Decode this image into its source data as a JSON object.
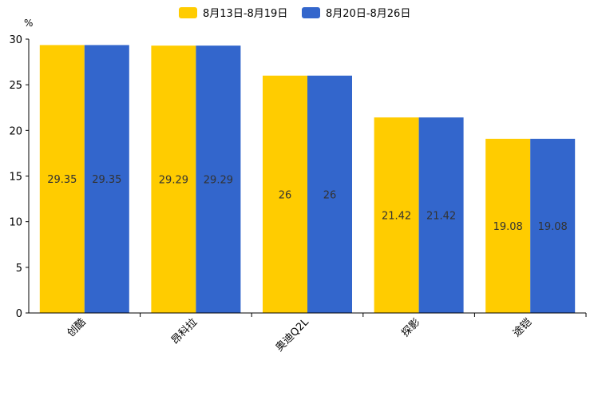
{
  "chart_data": {
    "type": "bar",
    "title": "",
    "xlabel": "",
    "ylabel": "%",
    "ylim": [
      0,
      30
    ],
    "yticks": [
      0,
      5,
      10,
      15,
      20,
      25,
      30
    ],
    "grid": false,
    "legend_position": "top-center",
    "categories": [
      "创酷",
      "昂科拉",
      "奥迪Q2L",
      "探影",
      "途铠"
    ],
    "series": [
      {
        "name": "8月13日-8月19日",
        "color": "#FFCC00",
        "values": [
          29.35,
          29.29,
          26,
          21.42,
          19.08
        ]
      },
      {
        "name": "8月20日-8月26日",
        "color": "#3366CC",
        "values": [
          29.35,
          29.29,
          26,
          21.42,
          19.08
        ]
      }
    ]
  }
}
